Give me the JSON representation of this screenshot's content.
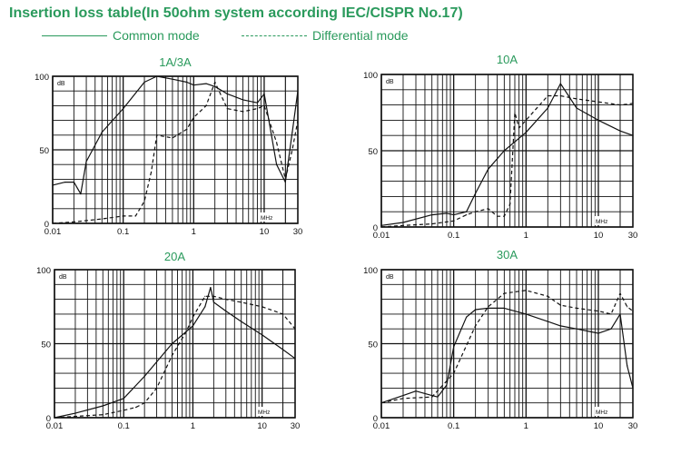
{
  "title": "Insertion loss table(In 50ohm system according IEC/CISPR No.17)",
  "legend": {
    "common_mode": "Common mode",
    "differential_mode": "Differential mode"
  },
  "colors": {
    "title": "#2a9a5c",
    "chart_line": "#111111",
    "grid": "#111111"
  },
  "chart_data": [
    {
      "type": "line",
      "title": "1A/3A",
      "unit_y": "dB",
      "unit_x": "MHz",
      "x_scale": "log",
      "xlim": [
        0.01,
        30
      ],
      "ylim": [
        0,
        100
      ],
      "x_ticks": [
        "0.01",
        "0.1",
        "1",
        "10",
        "30"
      ],
      "x_tick_values": [
        0.01,
        0.1,
        1,
        10,
        30
      ],
      "y_ticks": [
        "0",
        "50",
        "100"
      ],
      "y_tick_values": [
        0,
        50,
        100
      ],
      "grid": true,
      "series": [
        {
          "name": "Common mode",
          "style": "solid",
          "x": [
            0.01,
            0.015,
            0.02,
            0.025,
            0.03,
            0.05,
            0.1,
            0.2,
            0.3,
            0.5,
            0.8,
            1,
            1.5,
            2,
            3,
            5,
            8,
            10,
            15,
            20,
            25,
            30
          ],
          "y": [
            26,
            28,
            28,
            20,
            42,
            62,
            78,
            96,
            100,
            98,
            96,
            94,
            95,
            93,
            88,
            84,
            82,
            88,
            40,
            28,
            62,
            90
          ]
        },
        {
          "name": "Differential mode",
          "style": "dashed",
          "x": [
            0.01,
            0.02,
            0.05,
            0.1,
            0.15,
            0.2,
            0.25,
            0.3,
            0.5,
            0.8,
            1,
            1.5,
            2,
            3,
            5,
            8,
            10,
            15,
            20,
            25,
            30
          ],
          "y": [
            0,
            1,
            3,
            5,
            5,
            15,
            35,
            60,
            58,
            64,
            72,
            80,
            96,
            78,
            76,
            78,
            80,
            55,
            30,
            50,
            70
          ]
        }
      ]
    },
    {
      "type": "line",
      "title": "10A",
      "unit_y": "dB",
      "unit_x": "MHz",
      "x_scale": "log",
      "xlim": [
        0.01,
        30
      ],
      "ylim": [
        0,
        100
      ],
      "x_ticks": [
        "0.01",
        "0.1",
        "1",
        "10",
        "30"
      ],
      "x_tick_values": [
        0.01,
        0.1,
        1,
        10,
        30
      ],
      "y_ticks": [
        "0",
        "50",
        "100"
      ],
      "y_tick_values": [
        0,
        50,
        100
      ],
      "grid": true,
      "series": [
        {
          "name": "Common mode",
          "style": "solid",
          "x": [
            0.01,
            0.02,
            0.05,
            0.08,
            0.1,
            0.15,
            0.2,
            0.3,
            0.5,
            1,
            2,
            3,
            5,
            10,
            20,
            30
          ],
          "y": [
            1,
            3,
            8,
            9,
            8,
            10,
            22,
            38,
            50,
            62,
            78,
            94,
            78,
            70,
            63,
            60
          ]
        },
        {
          "name": "Differential mode",
          "style": "dashed",
          "x": [
            0.01,
            0.02,
            0.05,
            0.1,
            0.15,
            0.2,
            0.3,
            0.4,
            0.5,
            0.6,
            0.7,
            0.8,
            1,
            2,
            3,
            5,
            10,
            20,
            30
          ],
          "y": [
            0,
            1,
            2,
            4,
            8,
            10,
            12,
            7,
            7,
            15,
            75,
            65,
            70,
            86,
            86,
            84,
            82,
            80,
            81
          ]
        }
      ]
    },
    {
      "type": "line",
      "title": "20A",
      "unit_y": "dB",
      "unit_x": "MHz",
      "x_scale": "log",
      "xlim": [
        0.01,
        30
      ],
      "ylim": [
        0,
        100
      ],
      "x_ticks": [
        "0.01",
        "0.1",
        "1",
        "10",
        "30"
      ],
      "x_tick_values": [
        0.01,
        0.1,
        1,
        10,
        30
      ],
      "y_ticks": [
        "0",
        "50",
        "100"
      ],
      "y_tick_values": [
        0,
        50,
        100
      ],
      "grid": true,
      "series": [
        {
          "name": "Common mode",
          "style": "solid",
          "x": [
            0.01,
            0.02,
            0.05,
            0.1,
            0.2,
            0.5,
            1,
            1.5,
            1.8,
            2,
            3,
            5,
            10,
            20,
            30
          ],
          "y": [
            0,
            3,
            8,
            13,
            28,
            50,
            62,
            75,
            88,
            78,
            72,
            65,
            56,
            46,
            40
          ]
        },
        {
          "name": "Differential mode",
          "style": "dashed",
          "x": [
            0.01,
            0.05,
            0.1,
            0.15,
            0.2,
            0.3,
            0.5,
            0.8,
            1,
            1.5,
            2,
            3,
            5,
            10,
            20,
            30
          ],
          "y": [
            0,
            2,
            5,
            7,
            10,
            20,
            42,
            58,
            68,
            82,
            82,
            80,
            78,
            75,
            70,
            60
          ]
        }
      ]
    },
    {
      "type": "line",
      "title": "30A",
      "unit_y": "dB",
      "unit_x": "MHz",
      "x_scale": "log",
      "xlim": [
        0.01,
        30
      ],
      "ylim": [
        0,
        100
      ],
      "x_ticks": [
        "0.01",
        "0.1",
        "1",
        "10",
        "30"
      ],
      "x_tick_values": [
        0.01,
        0.1,
        1,
        10,
        30
      ],
      "y_ticks": [
        "0",
        "50",
        "100"
      ],
      "y_tick_values": [
        0,
        50,
        100
      ],
      "grid": true,
      "series": [
        {
          "name": "Common mode",
          "style": "solid",
          "x": [
            0.01,
            0.02,
            0.03,
            0.05,
            0.06,
            0.08,
            0.1,
            0.15,
            0.2,
            0.3,
            0.5,
            1,
            2,
            3,
            5,
            8,
            10,
            15,
            20,
            25,
            30
          ],
          "y": [
            10,
            15,
            18,
            15,
            14,
            22,
            48,
            68,
            73,
            74,
            74,
            70,
            65,
            62,
            60,
            58,
            57,
            60,
            70,
            35,
            20
          ]
        },
        {
          "name": "Differential mode",
          "style": "dashed",
          "x": [
            0.01,
            0.02,
            0.05,
            0.1,
            0.2,
            0.3,
            0.5,
            1,
            2,
            3,
            5,
            10,
            15,
            20,
            25,
            30
          ],
          "y": [
            10,
            13,
            14,
            30,
            62,
            75,
            84,
            86,
            82,
            76,
            74,
            72,
            70,
            84,
            75,
            72
          ]
        }
      ]
    }
  ]
}
